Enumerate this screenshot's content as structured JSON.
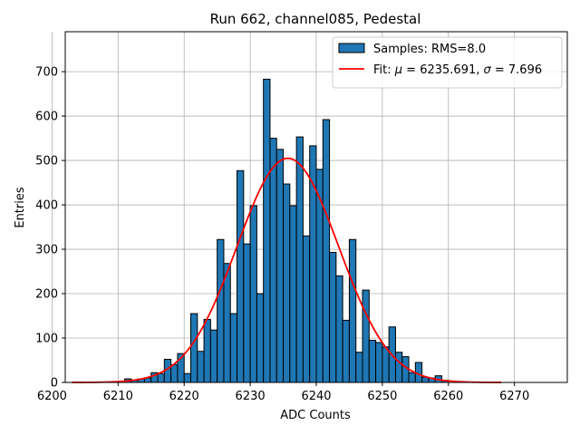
{
  "chart_data": {
    "type": "bar",
    "title": "Run 662, channel085, Pedestal",
    "xlabel": "ADC Counts",
    "ylabel": "Entries",
    "xlim": [
      6202,
      6278
    ],
    "ylim": [
      0,
      790
    ],
    "xticks": [
      6200,
      6210,
      6220,
      6230,
      6240,
      6250,
      6260,
      6270
    ],
    "yticks": [
      0,
      100,
      200,
      300,
      400,
      500,
      600,
      700
    ],
    "grid": true,
    "legend_position": "top-right",
    "colors": {
      "bar": "#1f77b4",
      "bar_edge": "#000000",
      "fit": "#ff0000"
    },
    "series": [
      {
        "name": "Samples: RMS=8.0",
        "type": "histogram",
        "bin_width": 1,
        "bins": [
          {
            "x": 6211,
            "y": 8
          },
          {
            "x": 6212,
            "y": 5
          },
          {
            "x": 6213,
            "y": 8
          },
          {
            "x": 6214,
            "y": 10
          },
          {
            "x": 6215,
            "y": 22
          },
          {
            "x": 6216,
            "y": 20
          },
          {
            "x": 6217,
            "y": 52
          },
          {
            "x": 6218,
            "y": 40
          },
          {
            "x": 6219,
            "y": 65
          },
          {
            "x": 6220,
            "y": 20
          },
          {
            "x": 6221,
            "y": 155
          },
          {
            "x": 6222,
            "y": 70
          },
          {
            "x": 6223,
            "y": 142
          },
          {
            "x": 6224,
            "y": 118
          },
          {
            "x": 6225,
            "y": 322
          },
          {
            "x": 6226,
            "y": 268
          },
          {
            "x": 6227,
            "y": 155
          },
          {
            "x": 6228,
            "y": 477
          },
          {
            "x": 6229,
            "y": 312
          },
          {
            "x": 6230,
            "y": 398
          },
          {
            "x": 6231,
            "y": 200
          },
          {
            "x": 6232,
            "y": 683
          },
          {
            "x": 6233,
            "y": 550
          },
          {
            "x": 6234,
            "y": 525
          },
          {
            "x": 6235,
            "y": 447
          },
          {
            "x": 6236,
            "y": 398
          },
          {
            "x": 6237,
            "y": 553
          },
          {
            "x": 6238,
            "y": 330
          },
          {
            "x": 6239,
            "y": 533
          },
          {
            "x": 6240,
            "y": 480
          },
          {
            "x": 6241,
            "y": 592
          },
          {
            "x": 6242,
            "y": 293
          },
          {
            "x": 6243,
            "y": 240
          },
          {
            "x": 6244,
            "y": 140
          },
          {
            "x": 6245,
            "y": 322
          },
          {
            "x": 6246,
            "y": 68
          },
          {
            "x": 6247,
            "y": 208
          },
          {
            "x": 6248,
            "y": 95
          },
          {
            "x": 6249,
            "y": 90
          },
          {
            "x": 6250,
            "y": 80
          },
          {
            "x": 6251,
            "y": 125
          },
          {
            "x": 6252,
            "y": 68
          },
          {
            "x": 6253,
            "y": 58
          },
          {
            "x": 6254,
            "y": 22
          },
          {
            "x": 6255,
            "y": 45
          },
          {
            "x": 6256,
            "y": 12
          },
          {
            "x": 6257,
            "y": 10
          },
          {
            "x": 6258,
            "y": 15
          },
          {
            "x": 6259,
            "y": 5
          }
        ]
      },
      {
        "name": "Fit: μ = 6235.691, σ = 7.696",
        "name_parts": {
          "prefix": "Fit: ",
          "mu_symbol": "μ",
          "mu_value": " = 6235.691, ",
          "sigma_symbol": "σ",
          "sigma_value": " = 7.696"
        },
        "type": "line",
        "mu": 6235.691,
        "sigma": 7.696,
        "amplitude": 505,
        "x_range": [
          6203,
          6268
        ]
      }
    ]
  }
}
